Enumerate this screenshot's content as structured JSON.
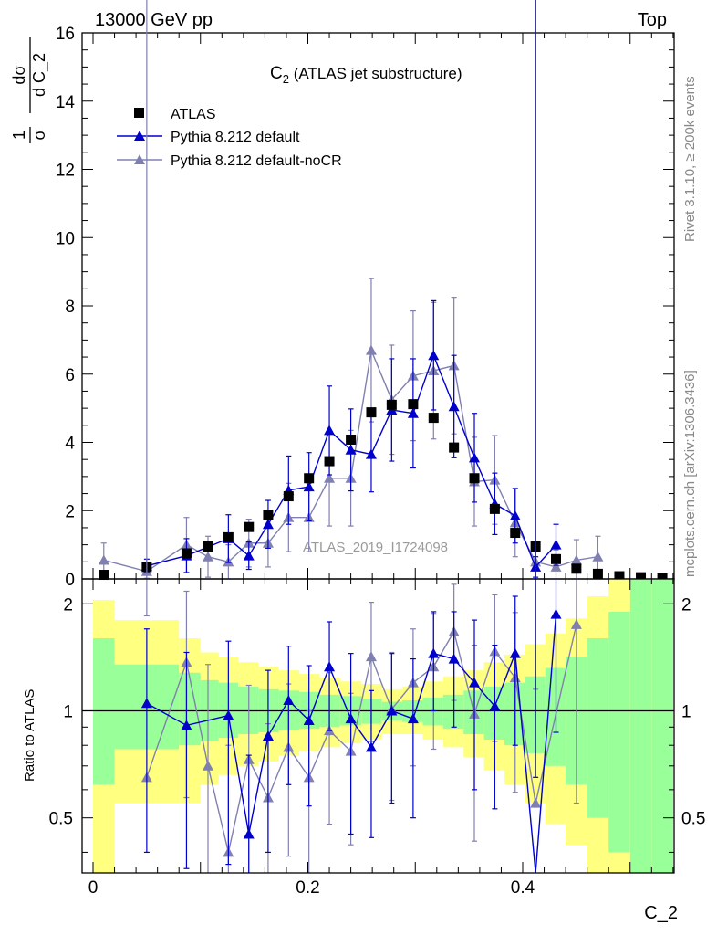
{
  "header": {
    "left": "13000 GeV pp",
    "right": "Top"
  },
  "side_text": {
    "top": "Rivet 3.1.10, ≥ 200k events",
    "bottom": "mcplots.cern.ch [arXiv:1306.3436]"
  },
  "colors": {
    "atlas": "#000000",
    "default": "#0000cc",
    "nocr": "#8080b0",
    "band_inner": "#99ff99",
    "band_outer": "#ffff80"
  },
  "chart_data": [
    {
      "type": "scatter",
      "title": "C₂ (ATLAS jet substructure)",
      "title_main": "C",
      "title_sub": "2",
      "title_rest": " (ATLAS jet substructure)",
      "ylabel": "1/σ dσ/d C_2",
      "ylabel_parts": {
        "frac1_num": "1",
        "frac1_den": "σ",
        "frac2_num": "dσ",
        "frac2_den": "d C_2"
      },
      "watermark": "ATLAS_2019_I1724098",
      "xlim": [
        0,
        0.54
      ],
      "ylim": [
        0,
        16
      ],
      "y_ticks": [
        0,
        2,
        4,
        6,
        8,
        10,
        12,
        14,
        16
      ],
      "legend": [
        "ATLAS",
        "Pythia 8.212 default",
        "Pythia 8.212 default-noCR"
      ],
      "series": [
        {
          "name": "ATLAS",
          "x": [
            0.01,
            0.05,
            0.087,
            0.107,
            0.126,
            0.145,
            0.163,
            0.182,
            0.201,
            0.22,
            0.24,
            0.259,
            0.278,
            0.298,
            0.317,
            0.336,
            0.355,
            0.374,
            0.393,
            0.412,
            0.431,
            0.45,
            0.47,
            0.49,
            0.51,
            0.53
          ],
          "y": [
            0.12,
            0.35,
            0.75,
            0.95,
            1.22,
            1.52,
            1.88,
            2.42,
            2.95,
            3.45,
            4.08,
            4.88,
            5.1,
            5.12,
            4.72,
            3.85,
            2.95,
            2.05,
            1.35,
            0.95,
            0.58,
            0.3,
            0.15,
            0.08,
            0.05,
            0.02
          ]
        },
        {
          "name": "Pythia 8.212 default",
          "x": [
            0.05,
            0.087,
            0.126,
            0.145,
            0.163,
            0.182,
            0.201,
            0.22,
            0.24,
            0.259,
            0.278,
            0.298,
            0.317,
            0.336,
            0.355,
            0.374,
            0.393,
            0.412,
            0.431
          ],
          "y": [
            0.38,
            0.68,
            1.18,
            0.68,
            1.6,
            2.6,
            2.7,
            4.35,
            3.78,
            3.65,
            4.95,
            4.85,
            6.55,
            5.05,
            3.55,
            2.2,
            1.85,
            0.35,
            1.0
          ],
          "err": [
            0.2,
            0.5,
            0.7,
            0.4,
            0.7,
            1.0,
            1.0,
            1.3,
            1.2,
            1.1,
            1.5,
            1.6,
            1.6,
            1.5,
            1.3,
            0.9,
            0.8,
            0.3,
            0.6
          ]
        },
        {
          "name": "Pythia 8.212 default-noCR",
          "x": [
            0.01,
            0.05,
            0.087,
            0.107,
            0.126,
            0.145,
            0.163,
            0.182,
            0.201,
            0.22,
            0.24,
            0.259,
            0.278,
            0.298,
            0.317,
            0.336,
            0.355,
            0.374,
            0.393,
            0.412,
            0.431,
            0.45,
            0.47
          ],
          "y": [
            0.55,
            0.22,
            1.0,
            0.65,
            0.5,
            1.05,
            1.05,
            1.8,
            1.8,
            2.95,
            2.95,
            6.7,
            5.25,
            5.95,
            6.1,
            6.25,
            2.85,
            2.9,
            1.65,
            0.5,
            0.35,
            0.55,
            0.65
          ],
          "err": [
            0.5,
            0.2,
            0.8,
            0.6,
            0.5,
            0.7,
            0.7,
            1.0,
            1.0,
            1.4,
            1.4,
            2.1,
            1.6,
            1.9,
            2.0,
            2.0,
            1.3,
            1.3,
            1.0,
            0.5,
            0.5,
            0.6,
            0.6
          ]
        }
      ]
    },
    {
      "type": "line",
      "xlabel": "C_2",
      "ylabel": "Ratio to ATLAS",
      "xlim": [
        0,
        0.54
      ],
      "ylim": [
        0.35,
        2.35
      ],
      "y_ticks": [
        0.5,
        1,
        2
      ],
      "x_ticks": [
        0,
        0.2,
        0.4
      ],
      "bands": {
        "edges": [
          0.0,
          0.02,
          0.08,
          0.1,
          0.117,
          0.135,
          0.154,
          0.173,
          0.192,
          0.211,
          0.23,
          0.25,
          0.269,
          0.288,
          0.307,
          0.326,
          0.345,
          0.364,
          0.383,
          0.402,
          0.421,
          0.44,
          0.46,
          0.48,
          0.5,
          0.52,
          0.54
        ],
        "inner_lo": [
          0.62,
          0.78,
          0.8,
          0.82,
          0.84,
          0.86,
          0.87,
          0.88,
          0.89,
          0.9,
          0.91,
          0.92,
          0.94,
          0.93,
          0.91,
          0.89,
          0.86,
          0.83,
          0.8,
          0.76,
          0.7,
          0.62,
          0.5,
          0.4,
          0.35,
          0.35
        ],
        "inner_hi": [
          1.6,
          1.35,
          1.28,
          1.22,
          1.2,
          1.17,
          1.15,
          1.14,
          1.13,
          1.11,
          1.1,
          1.08,
          1.06,
          1.07,
          1.09,
          1.11,
          1.14,
          1.17,
          1.2,
          1.25,
          1.32,
          1.42,
          1.6,
          1.9,
          2.35,
          2.35
        ],
        "outer_lo": [
          0.35,
          0.55,
          0.55,
          0.62,
          0.66,
          0.7,
          0.72,
          0.75,
          0.77,
          0.79,
          0.81,
          0.83,
          0.86,
          0.86,
          0.83,
          0.79,
          0.74,
          0.68,
          0.62,
          0.55,
          0.48,
          0.42,
          0.35,
          0.35,
          0.35,
          0.35
        ],
        "outer_hi": [
          2.05,
          1.8,
          1.6,
          1.46,
          1.42,
          1.37,
          1.33,
          1.3,
          1.27,
          1.24,
          1.21,
          1.19,
          1.15,
          1.17,
          1.21,
          1.25,
          1.3,
          1.37,
          1.44,
          1.54,
          1.65,
          1.82,
          2.1,
          2.35,
          2.35,
          2.35
        ]
      },
      "series": [
        {
          "name": "Pythia 8.212 default",
          "x": [
            0.05,
            0.087,
            0.126,
            0.145,
            0.163,
            0.182,
            0.201,
            0.22,
            0.24,
            0.259,
            0.278,
            0.298,
            0.317,
            0.336,
            0.355,
            0.374,
            0.393,
            0.412,
            0.431
          ],
          "y": [
            1.05,
            0.91,
            0.97,
            0.45,
            0.85,
            1.07,
            0.94,
            1.33,
            0.95,
            0.79,
            1.0,
            0.95,
            1.45,
            1.4,
            1.2,
            1.03,
            1.45,
            0.3,
            1.87
          ],
          "err": [
            0.65,
            0.55,
            0.6,
            0.3,
            0.45,
            0.45,
            0.4,
            0.45,
            0.5,
            0.35,
            0.45,
            0.45,
            0.45,
            0.5,
            0.6,
            0.5,
            0.65,
            0.35,
            1.0
          ]
        },
        {
          "name": "Pythia 8.212 default-noCR",
          "x": [
            0.05,
            0.087,
            0.107,
            0.126,
            0.145,
            0.163,
            0.182,
            0.201,
            0.22,
            0.24,
            0.259,
            0.278,
            0.298,
            0.317,
            0.336,
            0.355,
            0.374,
            0.393,
            0.412,
            0.45
          ],
          "y": [
            0.65,
            1.37,
            0.7,
            0.4,
            0.73,
            0.57,
            0.79,
            0.65,
            0.88,
            0.77,
            1.42,
            1.01,
            1.2,
            1.33,
            1.67,
            0.98,
            1.47,
            1.24,
            0.55,
            1.75
          ],
          "err": [
            1.2,
            0.8,
            0.65,
            0.4,
            0.45,
            0.35,
            0.4,
            0.35,
            0.4,
            0.35,
            0.6,
            0.45,
            0.5,
            0.55,
            0.6,
            0.55,
            0.65,
            0.65,
            0.6,
            1.2
          ]
        }
      ]
    }
  ]
}
